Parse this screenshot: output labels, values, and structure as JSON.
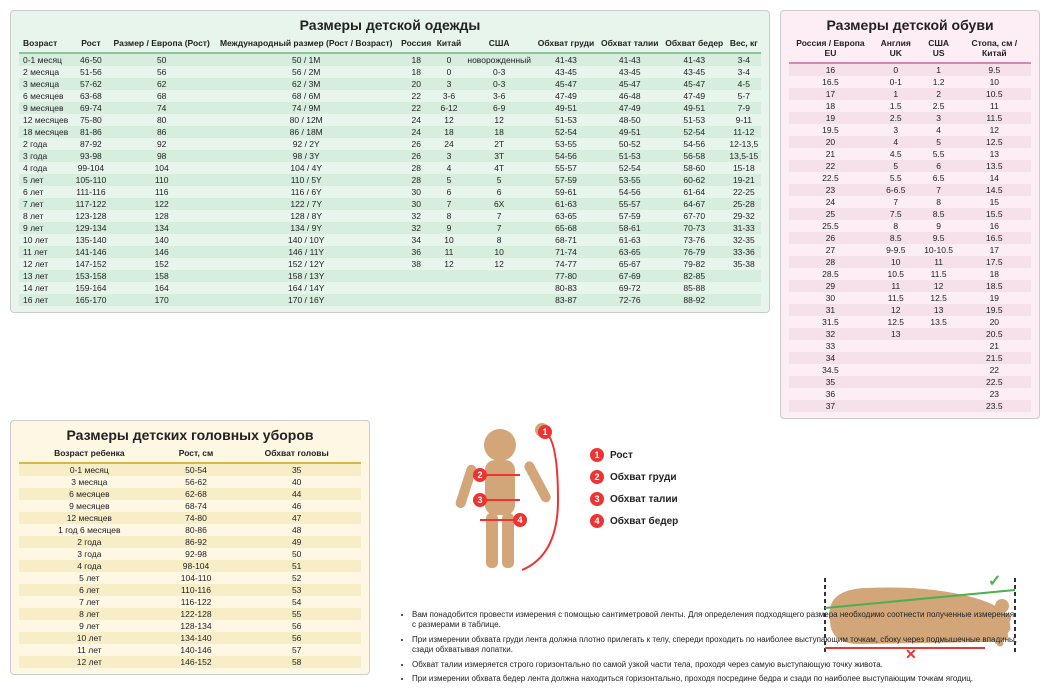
{
  "clothing": {
    "title": "Размеры детской одежды",
    "columns": [
      "Возраст",
      "Рост",
      "Размер / Европа (Рост)",
      "Международный размер (Рост / Возраст)",
      "Россия",
      "Китай",
      "США",
      "Обхват груди",
      "Обхват талии",
      "Обхват бедер",
      "Вес, кг"
    ],
    "rows": [
      [
        "0-1 месяц",
        "46-50",
        "50",
        "50 / 1M",
        "18",
        "0",
        "новорожденный",
        "41-43",
        "41-43",
        "41-43",
        "3-4"
      ],
      [
        "2 месяца",
        "51-56",
        "56",
        "56 / 2M",
        "18",
        "0",
        "0-3",
        "43-45",
        "43-45",
        "43-45",
        "3-4"
      ],
      [
        "3 месяца",
        "57-62",
        "62",
        "62 / 3M",
        "20",
        "3",
        "0-3",
        "45-47",
        "45-47",
        "45-47",
        "4-5"
      ],
      [
        "6 месяцев",
        "63-68",
        "68",
        "68 / 6M",
        "22",
        "3-6",
        "3-6",
        "47-49",
        "46-48",
        "47-49",
        "5-7"
      ],
      [
        "9 месяцев",
        "69-74",
        "74",
        "74 / 9M",
        "22",
        "6-12",
        "6-9",
        "49-51",
        "47-49",
        "49-51",
        "7-9"
      ],
      [
        "12 месяцев",
        "75-80",
        "80",
        "80 / 12M",
        "24",
        "12",
        "12",
        "51-53",
        "48-50",
        "51-53",
        "9-11"
      ],
      [
        "18 месяцев",
        "81-86",
        "86",
        "86 / 18M",
        "24",
        "18",
        "18",
        "52-54",
        "49-51",
        "52-54",
        "11-12"
      ],
      [
        "2 года",
        "87-92",
        "92",
        "92 / 2Y",
        "26",
        "24",
        "2T",
        "53-55",
        "50-52",
        "54-56",
        "12-13,5"
      ],
      [
        "3 года",
        "93-98",
        "98",
        "98 / 3Y",
        "26",
        "3",
        "3T",
        "54-56",
        "51-53",
        "56-58",
        "13,5-15"
      ],
      [
        "4 года",
        "99-104",
        "104",
        "104 / 4Y",
        "28",
        "4",
        "4T",
        "55-57",
        "52-54",
        "58-60",
        "15-18"
      ],
      [
        "5 лет",
        "105-110",
        "110",
        "110 / 5Y",
        "28",
        "5",
        "5",
        "57-59",
        "53-55",
        "60-62",
        "19-21"
      ],
      [
        "6 лет",
        "111-116",
        "116",
        "116 / 6Y",
        "30",
        "6",
        "6",
        "59-61",
        "54-56",
        "61-64",
        "22-25"
      ],
      [
        "7 лет",
        "117-122",
        "122",
        "122 / 7Y",
        "30",
        "7",
        "6X",
        "61-63",
        "55-57",
        "64-67",
        "25-28"
      ],
      [
        "8 лет",
        "123-128",
        "128",
        "128 / 8Y",
        "32",
        "8",
        "7",
        "63-65",
        "57-59",
        "67-70",
        "29-32"
      ],
      [
        "9 лет",
        "129-134",
        "134",
        "134 / 9Y",
        "32",
        "9",
        "7",
        "65-68",
        "58-61",
        "70-73",
        "31-33"
      ],
      [
        "10 лет",
        "135-140",
        "140",
        "140 / 10Y",
        "34",
        "10",
        "8",
        "68-71",
        "61-63",
        "73-76",
        "32-35"
      ],
      [
        "11 лет",
        "141-146",
        "146",
        "146 / 11Y",
        "36",
        "11",
        "10",
        "71-74",
        "63-65",
        "76-79",
        "33-36"
      ],
      [
        "12 лет",
        "147-152",
        "152",
        "152 / 12Y",
        "38",
        "12",
        "12",
        "74-77",
        "65-67",
        "79-82",
        "35-38"
      ],
      [
        "13 лет",
        "153-158",
        "158",
        "158 / 13Y",
        "",
        "",
        "",
        "77-80",
        "67-69",
        "82-85",
        ""
      ],
      [
        "14 лет",
        "159-164",
        "164",
        "164 / 14Y",
        "",
        "",
        "",
        "80-83",
        "69-72",
        "85-88",
        ""
      ],
      [
        "16 лет",
        "165-170",
        "170",
        "170 / 16Y",
        "",
        "",
        "",
        "83-87",
        "72-76",
        "88-92",
        ""
      ]
    ]
  },
  "shoes": {
    "title": "Размеры детской обуви",
    "columns": [
      "Россия / Европа EU",
      "Англия UK",
      "США US",
      "Стопа, см / Китай"
    ],
    "rows": [
      [
        "16",
        "0",
        "1",
        "9.5"
      ],
      [
        "16.5",
        "0-1",
        "1.2",
        "10"
      ],
      [
        "17",
        "1",
        "2",
        "10.5"
      ],
      [
        "18",
        "1.5",
        "2.5",
        "11"
      ],
      [
        "19",
        "2.5",
        "3",
        "11.5"
      ],
      [
        "19.5",
        "3",
        "4",
        "12"
      ],
      [
        "20",
        "4",
        "5",
        "12.5"
      ],
      [
        "21",
        "4.5",
        "5.5",
        "13"
      ],
      [
        "22",
        "5",
        "6",
        "13.5"
      ],
      [
        "22.5",
        "5.5",
        "6.5",
        "14"
      ],
      [
        "23",
        "6-6.5",
        "7",
        "14.5"
      ],
      [
        "24",
        "7",
        "8",
        "15"
      ],
      [
        "25",
        "7.5",
        "8.5",
        "15.5"
      ],
      [
        "25.5",
        "8",
        "9",
        "16"
      ],
      [
        "26",
        "8.5",
        "9.5",
        "16.5"
      ],
      [
        "27",
        "9-9.5",
        "10-10.5",
        "17"
      ],
      [
        "28",
        "10",
        "11",
        "17.5"
      ],
      [
        "28.5",
        "10.5",
        "11.5",
        "18"
      ],
      [
        "29",
        "11",
        "12",
        "18.5"
      ],
      [
        "30",
        "11.5",
        "12.5",
        "19"
      ],
      [
        "31",
        "12",
        "13",
        "19.5"
      ],
      [
        "31.5",
        "12.5",
        "13.5",
        "20"
      ],
      [
        "32",
        "13",
        "",
        "20.5"
      ],
      [
        "33",
        "",
        "",
        "21"
      ],
      [
        "34",
        "",
        "",
        "21.5"
      ],
      [
        "34.5",
        "",
        "",
        "22"
      ],
      [
        "35",
        "",
        "",
        "22.5"
      ],
      [
        "36",
        "",
        "",
        "23"
      ],
      [
        "37",
        "",
        "",
        "23.5"
      ]
    ]
  },
  "hats": {
    "title": "Размеры детских головных уборов",
    "columns": [
      "Возраст ребенка",
      "Рост, см",
      "Обхват головы"
    ],
    "rows": [
      [
        "0-1 месяц",
        "50-54",
        "35"
      ],
      [
        "3 месяца",
        "56-62",
        "40"
      ],
      [
        "6 месяцев",
        "62-68",
        "44"
      ],
      [
        "9 месяцев",
        "68-74",
        "46"
      ],
      [
        "12 месяцев",
        "74-80",
        "47"
      ],
      [
        "1 год 6 месяцев",
        "80-86",
        "48"
      ],
      [
        "2 года",
        "86-92",
        "49"
      ],
      [
        "3 года",
        "92-98",
        "50"
      ],
      [
        "4 года",
        "98-104",
        "51"
      ],
      [
        "5 лет",
        "104-110",
        "52"
      ],
      [
        "6 лет",
        "110-116",
        "53"
      ],
      [
        "7 лет",
        "116-122",
        "54"
      ],
      [
        "8 лет",
        "122-128",
        "55"
      ],
      [
        "9 лет",
        "128-134",
        "56"
      ],
      [
        "10 лет",
        "134-140",
        "56"
      ],
      [
        "11 лет",
        "140-146",
        "57"
      ],
      [
        "12 лет",
        "146-152",
        "58"
      ]
    ]
  },
  "legend": {
    "items": [
      "Рост",
      "Обхват груди",
      "Обхват талии",
      "Обхват бедер"
    ]
  },
  "notes": {
    "items": [
      "Вам понадобится провести измерения с помощью сантиметровой ленты. Для определения подходящего размера необходимо соотнести полученные измерения с размерами в таблице.",
      "При измерении обхвата груди лента должна плотно прилегать к телу, спереди проходить по наиболее выступающим точкам, сбоку через подмышечные впадины, сзади обхватывая лопатки.",
      "Обхват талии измеряется строго горизонтально по самой узкой части тела, проходя через самую выступающую точку живота.",
      "При измерении обхвата бедер лента должна находиться горизонтально, проходя посредине бедра и сзади по наиболее выступающим точкам ягодиц."
    ]
  },
  "colors": {
    "clothing_bg": "#e8f5ed",
    "clothing_stripe": "#d7edde",
    "clothing_border": "#8cc4a0",
    "shoes_bg": "#fceef4",
    "shoes_stripe": "#f6e1ea",
    "shoes_border": "#d48ab0",
    "hats_bg": "#fdf7e3",
    "hats_stripe": "#f7eec8",
    "hats_border": "#d9b84a",
    "marker": "#e33",
    "skin": "#d2a679",
    "check": "#4caf50",
    "cross": "#e53935"
  }
}
